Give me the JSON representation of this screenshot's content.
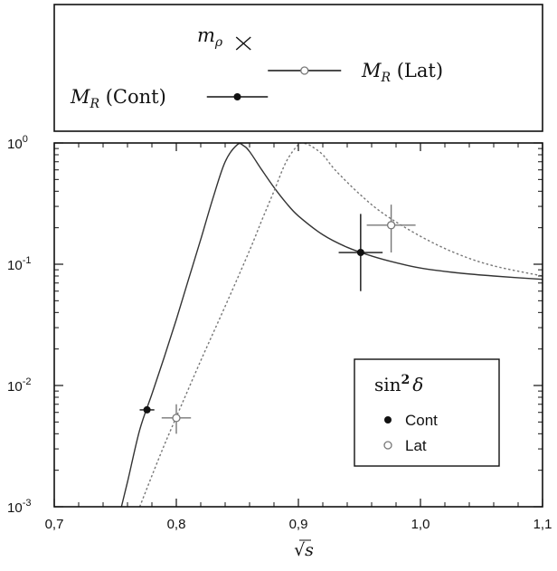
{
  "chart_data": [
    {
      "type": "scatter",
      "panel": "top",
      "markers": [
        {
          "label_main": "m",
          "label_sub": "ρ",
          "label_suffix": "",
          "x": 0.855,
          "xerr": 0.0,
          "marker": "x"
        },
        {
          "label_main": "M",
          "label_sub": "R",
          "label_suffix": " (Lat)",
          "x": 0.905,
          "xerr": 0.03,
          "marker": "open-circle"
        },
        {
          "label_main": "M",
          "label_sub": "R",
          "label_suffix": " (Cont)",
          "x": 0.85,
          "xerr": 0.025,
          "marker": "filled-circle"
        }
      ]
    },
    {
      "type": "line",
      "panel": "bottom",
      "xlabel": "√s",
      "ylabel": "",
      "xlim": [
        0.7,
        1.1
      ],
      "ylim": [
        0.001,
        1
      ],
      "y_scale": "log",
      "x_ticks": [
        "0,7",
        "0,8",
        "0,9",
        "1,0",
        "1,1"
      ],
      "y_ticks": [
        {
          "base": "10",
          "exp": "0"
        },
        {
          "base": "10",
          "exp": "-1"
        },
        {
          "base": "10",
          "exp": "-2"
        },
        {
          "base": "10",
          "exp": "-3"
        }
      ],
      "series": [
        {
          "name": "Cont",
          "style": "solid",
          "x": [
            0.755,
            0.76,
            0.77,
            0.78,
            0.79,
            0.8,
            0.81,
            0.82,
            0.83,
            0.84,
            0.85,
            0.855,
            0.86,
            0.87,
            0.88,
            0.89,
            0.9,
            0.92,
            0.94,
            0.96,
            0.98,
            1.0,
            1.03,
            1.06,
            1.1
          ],
          "values": [
            0.001,
            0.0016,
            0.0043,
            0.0085,
            0.017,
            0.035,
            0.075,
            0.16,
            0.35,
            0.7,
            0.97,
            0.95,
            0.85,
            0.6,
            0.43,
            0.32,
            0.25,
            0.175,
            0.138,
            0.117,
            0.103,
            0.093,
            0.085,
            0.08,
            0.075
          ]
        },
        {
          "name": "Lat",
          "style": "dotted",
          "x": [
            0.77,
            0.78,
            0.79,
            0.8,
            0.82,
            0.84,
            0.86,
            0.87,
            0.88,
            0.89,
            0.9,
            0.905,
            0.91,
            0.92,
            0.93,
            0.95,
            0.97,
            1.0,
            1.03,
            1.06,
            1.1
          ],
          "values": [
            0.001,
            0.0018,
            0.0032,
            0.0055,
            0.016,
            0.045,
            0.13,
            0.23,
            0.4,
            0.7,
            0.97,
            0.99,
            0.95,
            0.8,
            0.6,
            0.38,
            0.26,
            0.17,
            0.122,
            0.097,
            0.08
          ]
        }
      ],
      "points": [
        {
          "name": "Cont",
          "marker": "filled-circle",
          "x": 0.776,
          "y": 0.0063,
          "xerr": 0.006,
          "yerr_low": 0.0001,
          "yerr_high": 0.0001
        },
        {
          "name": "Lat",
          "marker": "open-circle",
          "x": 0.8,
          "y": 0.0054,
          "xerr": 0.012,
          "yerr_low": 0.0014,
          "yerr_high": 0.0016
        },
        {
          "name": "Cont",
          "marker": "filled-circle",
          "x": 0.951,
          "y": 0.125,
          "xerr": 0.018,
          "yerr_low": 0.065,
          "yerr_high": 0.135
        },
        {
          "name": "Lat",
          "marker": "open-circle",
          "x": 0.976,
          "y": 0.21,
          "xerr": 0.02,
          "yerr_low": 0.085,
          "yerr_high": 0.1
        }
      ],
      "legend": {
        "placement": "bottom-right",
        "title_main": "sin",
        "title_sup": "2",
        "title_var": "δ",
        "entries": [
          {
            "label": "Cont",
            "marker": "filled-circle"
          },
          {
            "label": "Lat",
            "marker": "open-circle"
          }
        ]
      }
    }
  ]
}
